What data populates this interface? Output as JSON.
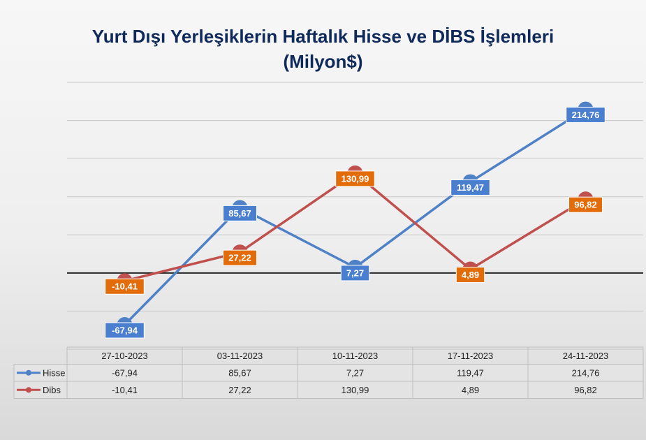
{
  "chart_data": {
    "type": "line",
    "title_line1": "Yurt Dışı Yerleşiklerin Haftalık Hisse ve DİBS İşlemleri",
    "title_line2": "(Milyon$)",
    "categories": [
      "27-10-2023",
      "03-11-2023",
      "10-11-2023",
      "17-11-2023",
      "24-11-2023"
    ],
    "series": [
      {
        "name": "Hisse",
        "values": [
          -67.94,
          85.67,
          7.27,
          119.47,
          214.76
        ],
        "labels": [
          "-67,94",
          "85,67",
          "7,27",
          "119,47",
          "214,76"
        ],
        "color": "#4f81c7",
        "label_bg": "#4a7fd0"
      },
      {
        "name": "Dibs",
        "values": [
          -10.41,
          27.22,
          130.99,
          4.89,
          96.82
        ],
        "labels": [
          "-10,41",
          "27,22",
          "130,99",
          "4,89",
          "96,82"
        ],
        "color": "#c0504d",
        "label_bg": "#e36c0a"
      }
    ],
    "ylim": [
      -100,
      250
    ],
    "grid": true,
    "data_table": true
  }
}
